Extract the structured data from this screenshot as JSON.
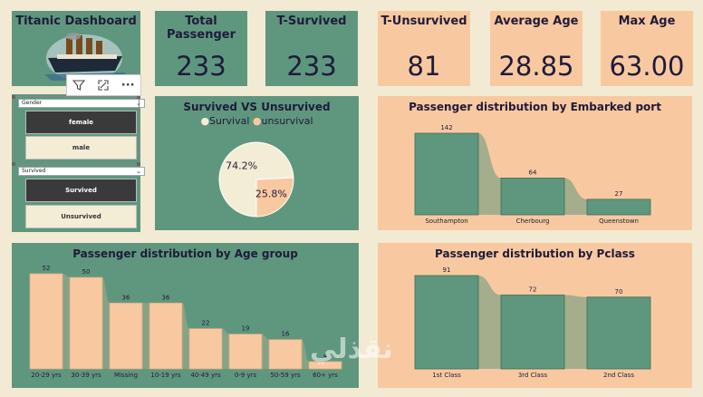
{
  "header": {
    "title": "Titanic Dashboard"
  },
  "kpis": [
    {
      "label": "Total Passenger",
      "value": "233"
    },
    {
      "label": "T-Survived",
      "value": "233"
    },
    {
      "label": "T-Unsurvived",
      "value": "81"
    },
    {
      "label": "Average Age",
      "value": "28.85"
    },
    {
      "label": "Max Age",
      "value": "63.00"
    }
  ],
  "slicers": {
    "gender": {
      "header": "Gender",
      "options": [
        "female",
        "male"
      ],
      "selected": "female"
    },
    "survived": {
      "header": "Survived",
      "options": [
        "Survived",
        "Unsurvived"
      ],
      "selected": "Survived"
    }
  },
  "toolbar": {
    "icons": [
      "filter-icon",
      "focus-mode-icon",
      "more-options-icon"
    ],
    "more_label": "···"
  },
  "watermark": "نقذلي",
  "chart_data": [
    {
      "type": "pie",
      "title": "Survived VS Unsurvived",
      "legend": [
        "Survival",
        "unsurvival"
      ],
      "legend_placement": "top",
      "values": [
        74.2,
        25.8
      ],
      "labels": [
        "74.2%",
        "25.8%"
      ],
      "colors": [
        "#f4edd6",
        "#f8c9a0"
      ]
    },
    {
      "type": "bar",
      "title": "Passenger distribution by Embarked port",
      "categories": [
        "Southampton",
        "Cherbourg",
        "Queenstown"
      ],
      "values": [
        142,
        64,
        27
      ],
      "color": "#5f977e"
    },
    {
      "type": "bar",
      "title": "Passenger distribution by Age group",
      "categories": [
        "20-29 yrs",
        "30-39 yrs",
        "Missing",
        "10-19 yrs",
        "40-49 yrs",
        "0-9 yrs",
        "50-59 yrs",
        "60+ yrs"
      ],
      "values": [
        52,
        50,
        36,
        36,
        22,
        19,
        16,
        4
      ],
      "color": "#f8c9a0"
    },
    {
      "type": "bar",
      "title": "Passenger distribution by Pclass",
      "categories": [
        "1st Class",
        "3rd Class",
        "2nd Class"
      ],
      "values": [
        91,
        72,
        70
      ],
      "color": "#5f977e"
    }
  ]
}
